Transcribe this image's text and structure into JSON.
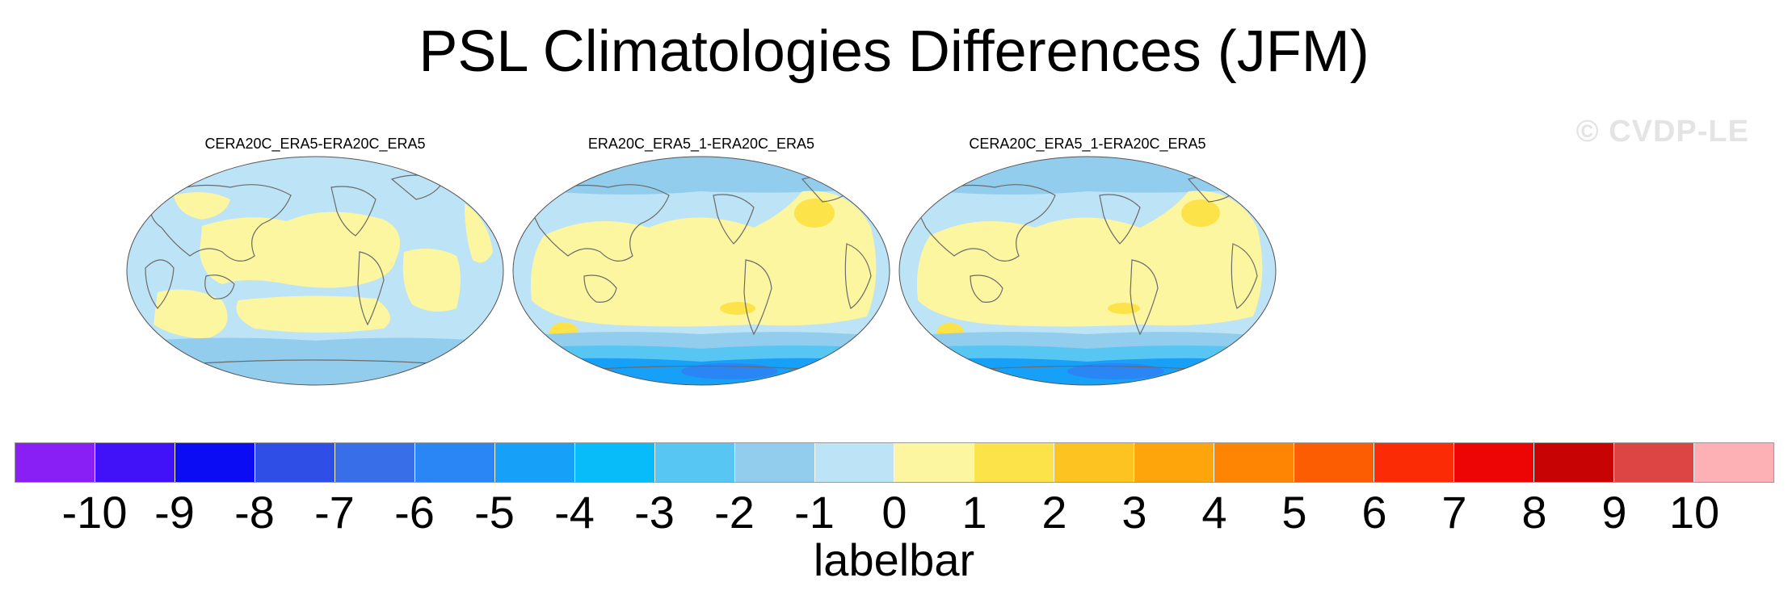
{
  "title": "PSL Climatologies Differences (JFM)",
  "watermark": "© CVDP-LE",
  "panels": [
    {
      "title": "CERA20C_ERA5-ERA20C_ERA5"
    },
    {
      "title": "ERA20C_ERA5_1-ERA20C_ERA5"
    },
    {
      "title": "CERA20C_ERA5_1-ERA20C_ERA5"
    }
  ],
  "labelbar": {
    "label": "labelbar",
    "ticks": [
      "-10",
      "-9",
      "-8",
      "-7",
      "-6",
      "-5",
      "-4",
      "-3",
      "-2",
      "-1",
      "0",
      "1",
      "2",
      "3",
      "4",
      "5",
      "6",
      "7",
      "8",
      "9",
      "10"
    ],
    "colors": [
      "#8a1ff5",
      "#4112f7",
      "#0b0bf4",
      "#2f4ee6",
      "#386fe8",
      "#2a86f5",
      "#17a0f7",
      "#08bcf9",
      "#58c6f3",
      "#93cdee",
      "#bde3f6",
      "#fdf6a0",
      "#fde34a",
      "#fdc321",
      "#fda50b",
      "#fd8503",
      "#fd5d02",
      "#fb2b05",
      "#ec0504",
      "#c80303",
      "#dd4545",
      "#fdb1b4"
    ]
  },
  "map_colors": {
    "ocean_neg": "#bde3f6",
    "pos_light": "#fdf6a0",
    "pos_mid": "#fde34a",
    "neg_2": "#93cdee",
    "neg_3": "#58c6f3",
    "neg_4": "#17a0f7",
    "neg_5": "#2a86f5",
    "coast": "#6b6b6b"
  }
}
